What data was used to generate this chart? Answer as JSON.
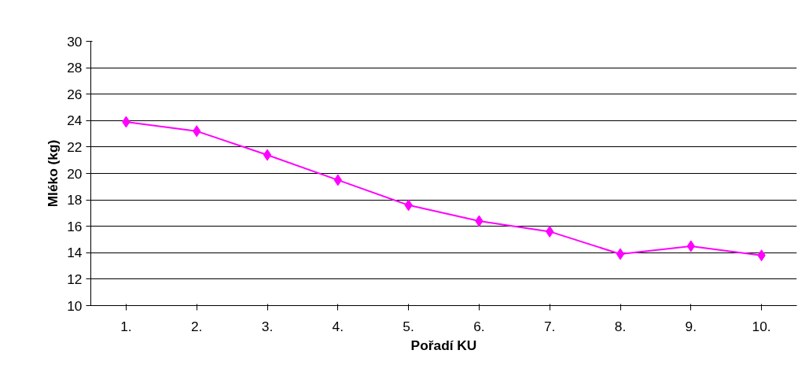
{
  "chart_data": {
    "type": "line",
    "xlabel": "Pořadí KU",
    "ylabel": "Mléko (kg)",
    "categories": [
      "1.",
      "2.",
      "3.",
      "4.",
      "5.",
      "6.",
      "7.",
      "8.",
      "9.",
      "10."
    ],
    "series": [
      {
        "color": "#ff00ff",
        "values": [
          23.9,
          23.2,
          21.4,
          19.5,
          17.6,
          16.4,
          15.6,
          13.9,
          14.5,
          13.8
        ]
      }
    ],
    "ylim": [
      10,
      30
    ],
    "yticks": [
      10,
      12,
      14,
      16,
      18,
      20,
      22,
      24,
      26,
      28,
      30
    ],
    "grid": "y",
    "marker": "diamond",
    "line_style": "solid"
  }
}
